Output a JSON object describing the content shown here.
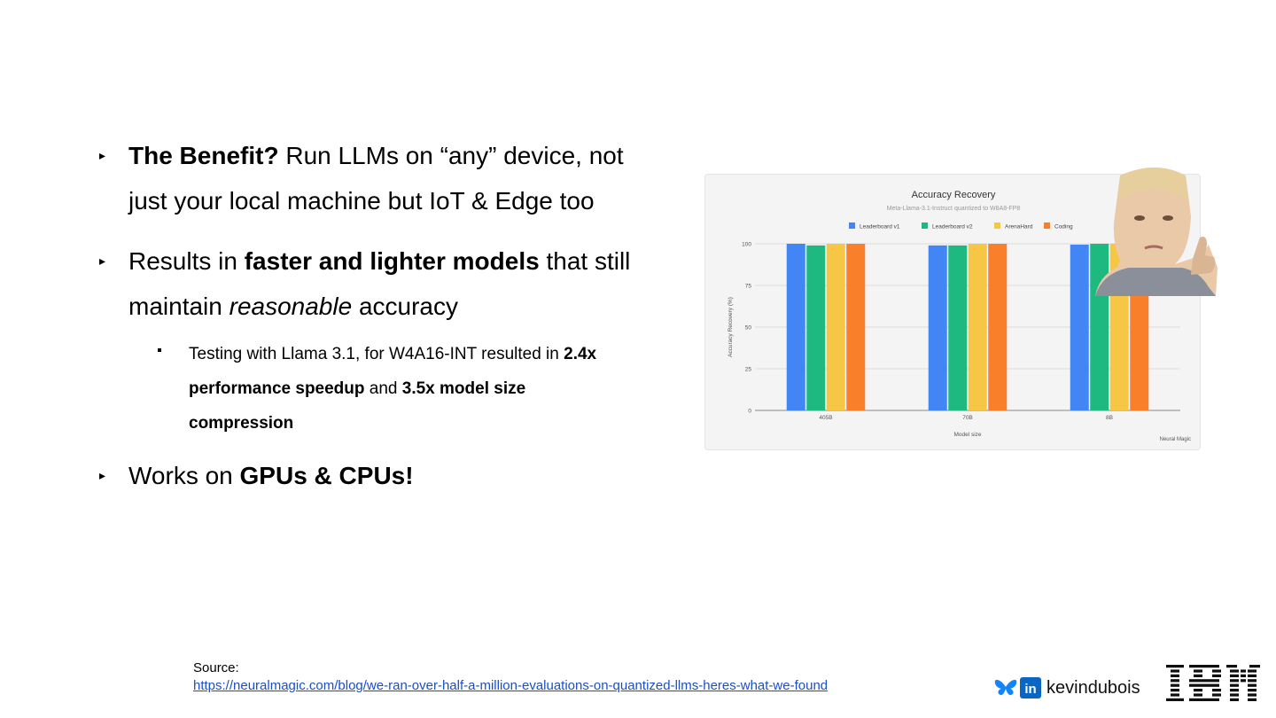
{
  "bullets": [
    {
      "bold": "The Benefit?",
      "text": " Run LLMs on “any” device, not just your local machine but IoT & Edge too"
    },
    {
      "pre": "Results in ",
      "bold": "faster and lighter models",
      "post": " that still maintain ",
      "italic": "reasonable",
      "post2": " accuracy"
    },
    {
      "pre": "Works on ",
      "bold": "GPUs & CPUs!"
    }
  ],
  "sub_bullet": {
    "pre": "Testing with Llama 3.1, for W4A16-INT resulted in ",
    "bold1": "2.4x performance speedup",
    "mid": " and ",
    "bold2": "3.5x model size compression"
  },
  "markers": {
    "main": "▸"
  },
  "source": {
    "label": "Source:",
    "url": "https://neuralmagic.com/blog/we-ran-over-half-a-million-evaluations-on-quantized-llms-heres-what-we-found"
  },
  "footer": {
    "handle": "kevindubois",
    "linkedin_glyph": "in",
    "icons": [
      "butterfly-icon",
      "linkedin-icon",
      "ibm-logo"
    ]
  },
  "chart_data": {
    "type": "bar",
    "title": "Accuracy Recovery",
    "subtitle": "Meta-Llama-3.1-Instruct quantized to W8A8-FP8",
    "xlabel": "Model size",
    "ylabel": "Accuracy Recovery (%)",
    "categories": [
      "405B",
      "70B",
      "8B"
    ],
    "ylim": [
      0,
      100
    ],
    "yticks": [
      0,
      25,
      50,
      75,
      100
    ],
    "series": [
      {
        "name": "Leaderboard v1",
        "values": [
          100,
          99,
          99.5
        ],
        "color": "#4285f4"
      },
      {
        "name": "Leaderboard v2",
        "values": [
          99,
          99,
          100
        ],
        "color": "#1eb980"
      },
      {
        "name": "ArenaHard",
        "values": [
          100,
          100,
          100
        ],
        "color": "#f6c744"
      },
      {
        "name": "Coding",
        "values": [
          100,
          100,
          100
        ],
        "color": "#fa7f2a"
      }
    ],
    "legend_position": "top",
    "grid": true,
    "watermark": "Neural Magic"
  },
  "colors": {
    "link": "#1a4fc9",
    "bluesky": "#1185fe",
    "linkedin": "#0a66c2",
    "ibm": "#0f0f0f"
  }
}
